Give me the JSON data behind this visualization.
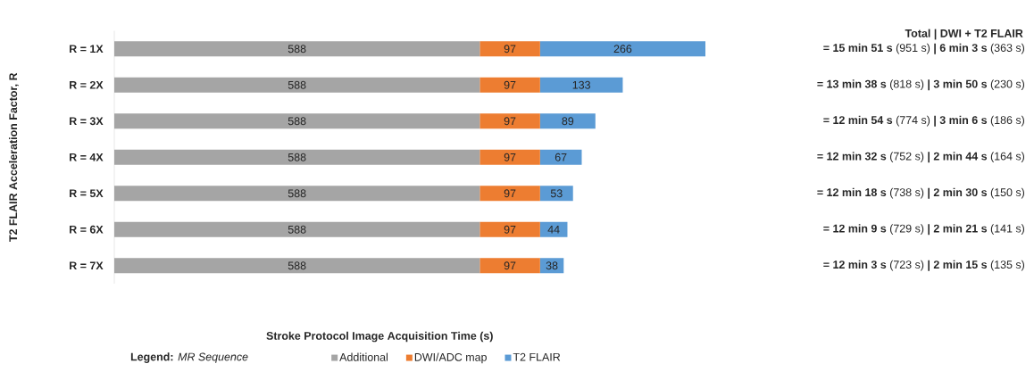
{
  "chart_data": {
    "type": "bar",
    "orientation": "horizontal",
    "stacked": true,
    "title": "Total | DWI + T2 FLAIR",
    "xlabel": "Stroke Protocol Image Acquisition Time (s)",
    "ylabel": "T2 FLAIR Acceleration Factor, R",
    "legend_title": "**Legend:** *MR Sequence*",
    "legend": "bottom",
    "data_labels": true,
    "tick_labels": "y",
    "xlim": [
      0,
      951
    ],
    "categories": [
      "R = 1X",
      "R = 2X",
      "R = 3X",
      "R = 4X",
      "R = 5X",
      "R = 6X",
      "R = 7X"
    ],
    "series": [
      {
        "name": "Additional",
        "color": "#a5a5a5",
        "values": [
          588,
          588,
          588,
          588,
          588,
          588,
          588
        ]
      },
      {
        "name": "DWI/ADC map",
        "color": "#ed7d31",
        "values": [
          97,
          97,
          97,
          97,
          97,
          97,
          97
        ]
      },
      {
        "name": "T2 FLAIR",
        "color": "#5b9bd5",
        "values": [
          266,
          133,
          89,
          67,
          53,
          44,
          38
        ]
      }
    ],
    "annotations": [
      "**= 15 min 51 s** (951 s) **| 6 min 3 s** (363 s)",
      "**= 13 min 38 s** (818 s) **| 3 min 50 s** (230 s)",
      "**= 12 min 54 s** (774 s) **| 3 min 6 s** (186 s)",
      "**= 12 min 32 s** (752 s) **| 2 min 44 s** (164 s)",
      "**= 12 min 18 s** (738 s) **| 2 min 30 s** (150 s)",
      "**= 12 min 9 s** (729 s) **| 2 min 21 s** (141 s)",
      "**= 12 min 3 s** (723 s) **| 2 min 15 s** (135 s)"
    ]
  }
}
